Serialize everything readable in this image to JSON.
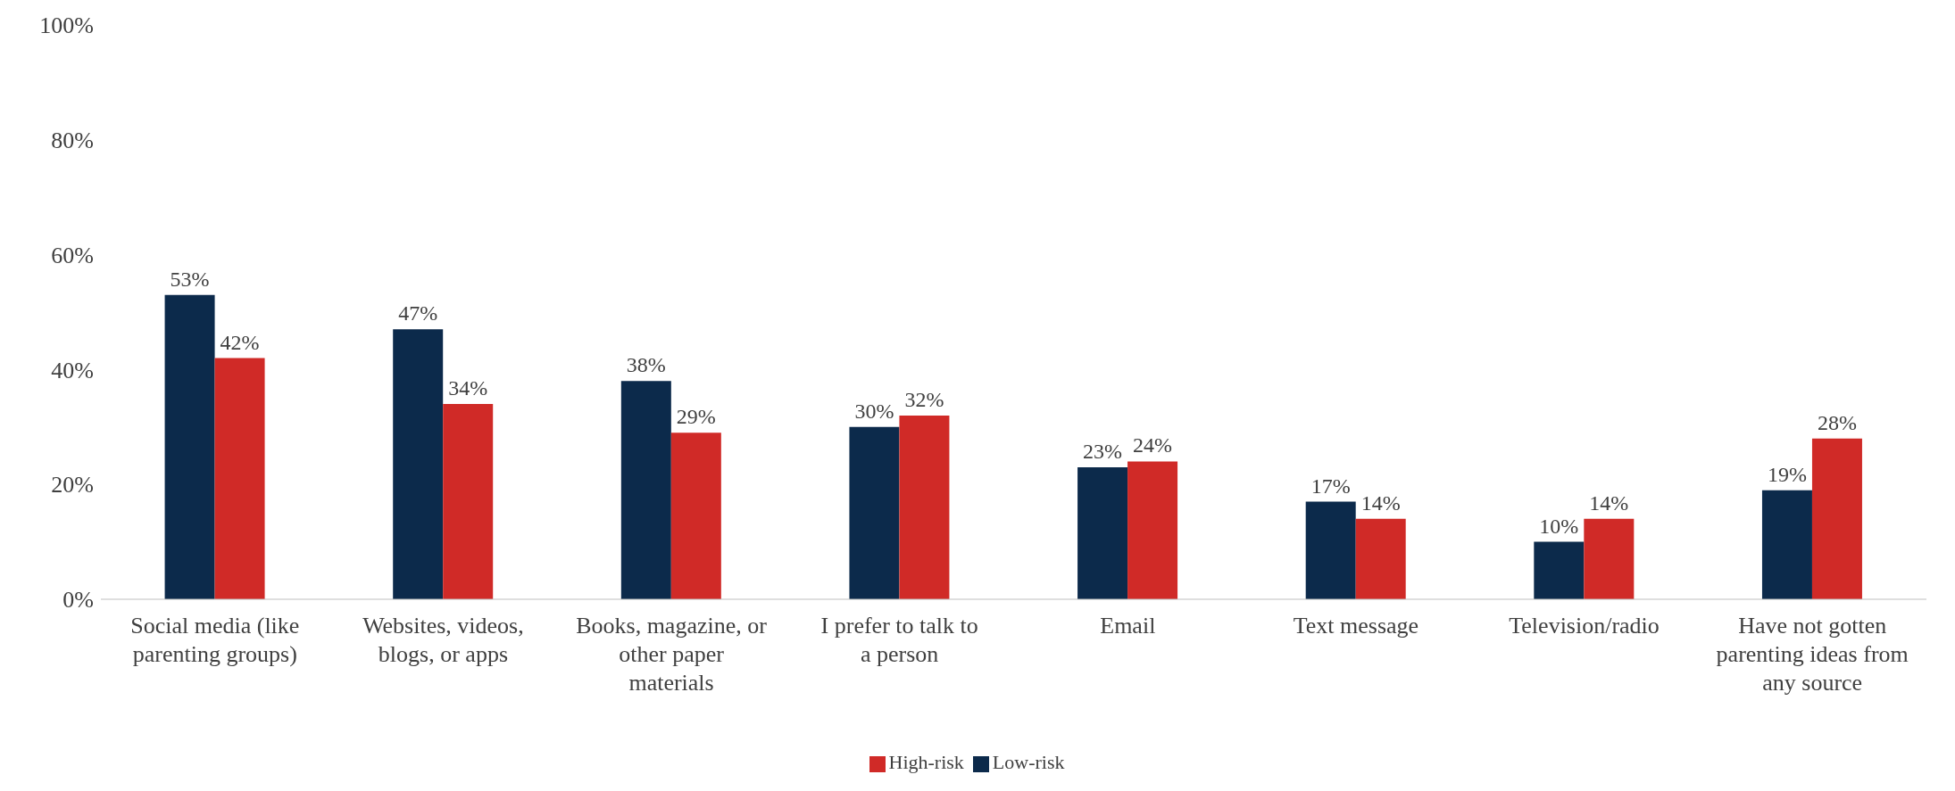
{
  "chart_data": {
    "type": "bar",
    "categories": [
      "Social media (like parenting groups)",
      "Websites, videos, blogs, or apps",
      "Books, magazine, or other paper materials",
      "I prefer to talk to a person",
      "Email",
      "Text message",
      "Television/radio",
      "Have not gotten parenting ideas from any source"
    ],
    "series": [
      {
        "name": "Low-risk",
        "color": "#0c2a4b",
        "values": [
          53,
          47,
          38,
          30,
          23,
          17,
          10,
          19
        ],
        "value_labels": [
          "53%",
          "47%",
          "38%",
          "30%",
          "23%",
          "17%",
          "10%",
          "19%"
        ]
      },
      {
        "name": "High-risk",
        "color": "#d02a27",
        "values": [
          42,
          34,
          29,
          32,
          24,
          14,
          14,
          28
        ],
        "value_labels": [
          "42%",
          "34%",
          "29%",
          "32%",
          "24%",
          "14%",
          "14%",
          "28%"
        ]
      }
    ],
    "ylim": [
      0,
      100
    ],
    "yticks": [
      {
        "value": 0,
        "label": "0%"
      },
      {
        "value": 20,
        "label": "20%"
      },
      {
        "value": 40,
        "label": "40%"
      },
      {
        "value": 60,
        "label": "60%"
      },
      {
        "value": 80,
        "label": "80%"
      },
      {
        "value": 100,
        "label": "100%"
      }
    ],
    "grid": false,
    "legend": "bottom"
  }
}
